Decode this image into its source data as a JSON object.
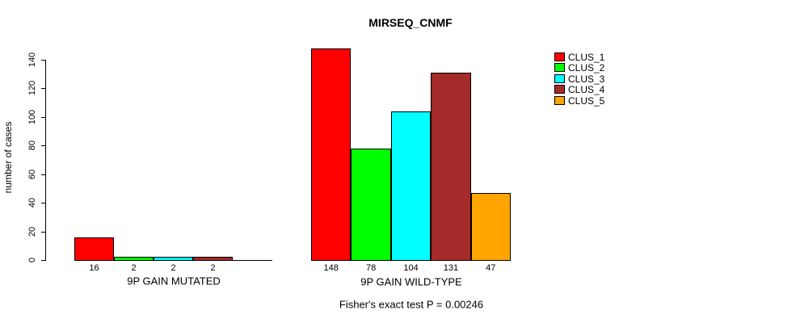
{
  "chart_data": {
    "type": "bar",
    "title": "MIRSEQ_CNMF",
    "ylabel": "number of cases",
    "ylim": [
      0,
      140
    ],
    "yticks": [
      0,
      20,
      40,
      60,
      80,
      100,
      120,
      140
    ],
    "grid": false,
    "legend_position": "top-right-outside",
    "series": [
      {
        "name": "CLUS_1",
        "color": "#ff0000"
      },
      {
        "name": "CLUS_2",
        "color": "#00ff00"
      },
      {
        "name": "CLUS_3",
        "color": "#00ffff"
      },
      {
        "name": "CLUS_4",
        "color": "#a52a2a"
      },
      {
        "name": "CLUS_5",
        "color": "#ffa500"
      }
    ],
    "groups": [
      {
        "label": "9P GAIN MUTATED",
        "values": [
          16,
          2,
          2,
          2,
          0
        ],
        "bar_labels": [
          "16",
          "2",
          "2",
          "2",
          ""
        ]
      },
      {
        "label": "9P GAIN WILD-TYPE",
        "values": [
          148,
          78,
          104,
          131,
          47
        ],
        "bar_labels": [
          "148",
          "78",
          "104",
          "131",
          "47"
        ]
      }
    ],
    "annotation": "Fisher's exact test P = 0.00246"
  }
}
